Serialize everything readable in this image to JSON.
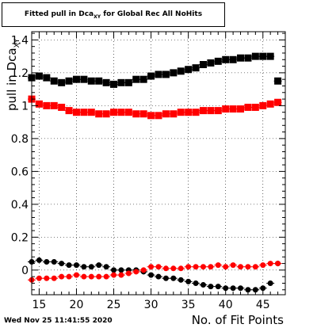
{
  "title_main": "Fitted pull in Dca",
  "title_sub": "XY",
  "title_rest": " for Global Rec All NoHits",
  "timestamp": "Wed Nov 25 11:41:55 2020",
  "chart_data": {
    "type": "scatter",
    "xlabel": "No. of Fit Points",
    "ylabel_main": "pull in Dca",
    "ylabel_sub": "XY",
    "xlim": [
      14,
      48
    ],
    "ylim": [
      -0.15,
      1.45
    ],
    "x_ticks": [
      15,
      20,
      25,
      30,
      35,
      40,
      45
    ],
    "y_ticks": [
      0,
      0.2,
      0.4,
      0.6,
      0.8,
      1,
      1.2,
      1.4
    ],
    "y_tick_labels": [
      "0",
      "0.2",
      "0.4",
      "0.6",
      "0.8",
      "1",
      "1.2",
      "1.4"
    ],
    "grid": true,
    "x": [
      14,
      15,
      16,
      17,
      18,
      19,
      20,
      21,
      22,
      23,
      24,
      25,
      26,
      27,
      28,
      29,
      30,
      31,
      32,
      33,
      34,
      35,
      36,
      37,
      38,
      39,
      40,
      41,
      42,
      43,
      44,
      45,
      46,
      47
    ],
    "series": [
      {
        "color": "#000000",
        "marker": "square",
        "values": [
          1.17,
          1.18,
          1.17,
          1.15,
          1.14,
          1.15,
          1.16,
          1.16,
          1.15,
          1.15,
          1.14,
          1.13,
          1.14,
          1.14,
          1.16,
          1.16,
          1.18,
          1.19,
          1.19,
          1.2,
          1.21,
          1.22,
          1.23,
          1.25,
          1.26,
          1.27,
          1.28,
          1.28,
          1.29,
          1.29,
          1.3,
          1.3,
          1.3,
          1.15
        ]
      },
      {
        "color": "#ff0000",
        "marker": "square",
        "values": [
          1.04,
          1.01,
          1.0,
          1.0,
          0.99,
          0.97,
          0.96,
          0.96,
          0.96,
          0.95,
          0.95,
          0.96,
          0.96,
          0.96,
          0.95,
          0.95,
          0.94,
          0.94,
          0.95,
          0.95,
          0.96,
          0.96,
          0.96,
          0.97,
          0.97,
          0.97,
          0.98,
          0.98,
          0.98,
          0.99,
          0.99,
          1.0,
          1.01,
          1.02
        ]
      },
      {
        "color": "#000000",
        "marker": "circle",
        "values": [
          0.05,
          0.06,
          0.05,
          0.05,
          0.04,
          0.03,
          0.03,
          0.02,
          0.02,
          0.03,
          0.02,
          0.0,
          0.0,
          0.0,
          0.0,
          -0.01,
          -0.03,
          -0.04,
          -0.05,
          -0.05,
          -0.06,
          -0.07,
          -0.08,
          -0.09,
          -0.1,
          -0.1,
          -0.11,
          -0.11,
          -0.11,
          -0.12,
          -0.12,
          -0.11,
          -0.08,
          0.04
        ]
      },
      {
        "color": "#ff0000",
        "marker": "circle",
        "values": [
          -0.06,
          -0.05,
          -0.05,
          -0.05,
          -0.04,
          -0.04,
          -0.03,
          -0.04,
          -0.04,
          -0.04,
          -0.04,
          -0.03,
          -0.03,
          -0.02,
          -0.01,
          0.0,
          0.02,
          0.02,
          0.01,
          0.01,
          0.01,
          0.02,
          0.02,
          0.02,
          0.02,
          0.03,
          0.02,
          0.03,
          0.02,
          0.02,
          0.02,
          0.03,
          0.04,
          0.04
        ]
      }
    ]
  }
}
